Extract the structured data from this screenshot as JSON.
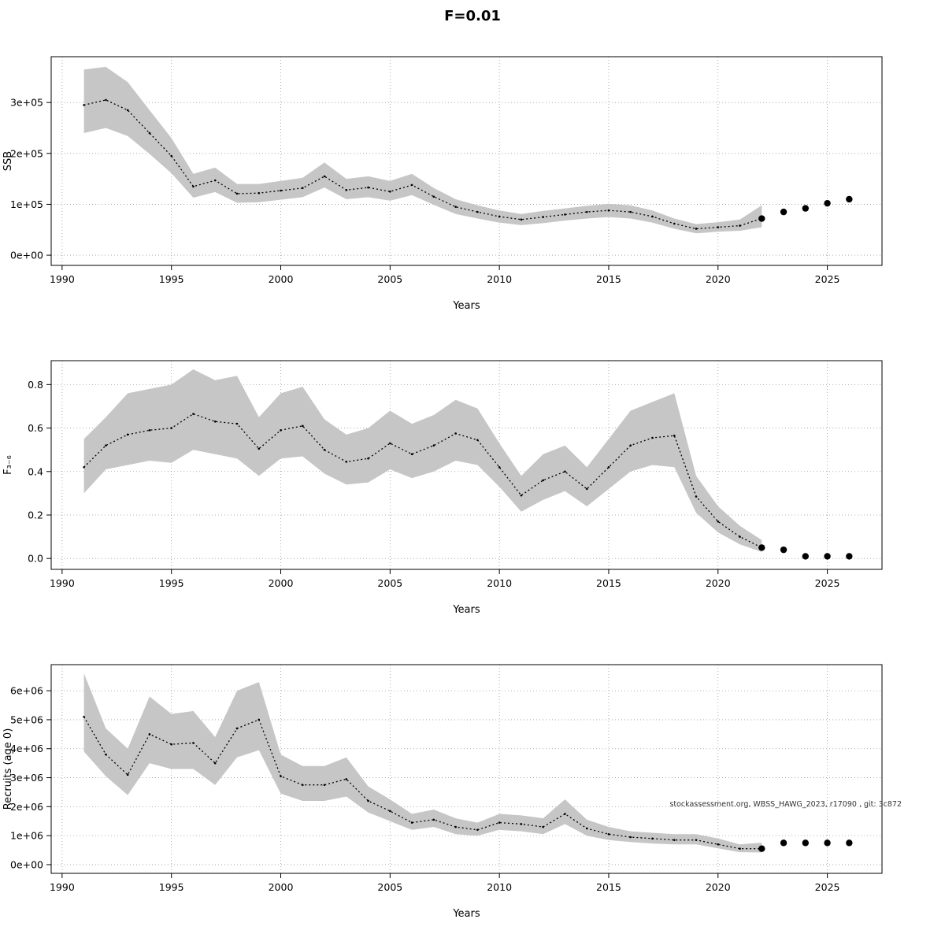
{
  "page": {
    "title": "F=0.01"
  },
  "chart_data": [
    {
      "type": "line",
      "name": "ssb",
      "title": "",
      "xlabel": "Years",
      "ylabel": "SSB",
      "xlim": [
        1989.5,
        2027.5
      ],
      "ylim": [
        -20000,
        390000
      ],
      "xticks": [
        1990,
        1995,
        2000,
        2005,
        2010,
        2015,
        2020,
        2025
      ],
      "xtick_labels": [
        "1990",
        "1995",
        "2000",
        "2005",
        "2010",
        "2015",
        "2020",
        "2025"
      ],
      "yticks": [
        0,
        100000,
        200000,
        300000
      ],
      "ytick_labels": [
        "0e+00",
        "1e+05",
        "2e+05",
        "3e+05"
      ],
      "grid": true,
      "band_color": "#c6c6c6",
      "line_color": "#000000",
      "years": [
        1991,
        1992,
        1993,
        1994,
        1995,
        1996,
        1997,
        1998,
        1999,
        2000,
        2001,
        2002,
        2003,
        2004,
        2005,
        2006,
        2007,
        2008,
        2009,
        2010,
        2011,
        2012,
        2013,
        2014,
        2015,
        2016,
        2017,
        2018,
        2019,
        2020,
        2021,
        2022
      ],
      "mean": [
        295000,
        305000,
        285000,
        240000,
        195000,
        135000,
        147000,
        121000,
        122000,
        127000,
        132000,
        155000,
        128000,
        133000,
        125000,
        138000,
        115000,
        95000,
        85000,
        76000,
        70000,
        75000,
        80000,
        85000,
        88000,
        85000,
        76000,
        62000,
        52000,
        55000,
        58000,
        72000
      ],
      "upper": [
        365000,
        370000,
        340000,
        285000,
        230000,
        160000,
        172000,
        140000,
        140000,
        146000,
        152000,
        182000,
        150000,
        155000,
        146000,
        160000,
        132000,
        110000,
        98000,
        88000,
        81000,
        87000,
        92000,
        97000,
        101000,
        98000,
        88000,
        72000,
        61000,
        65000,
        70000,
        98000
      ],
      "lower": [
        240000,
        250000,
        234000,
        199000,
        161000,
        113000,
        124000,
        103000,
        104000,
        109000,
        114000,
        133000,
        110000,
        114000,
        107000,
        118000,
        99000,
        81000,
        72000,
        64000,
        59000,
        63000,
        68000,
        72000,
        75000,
        72000,
        64000,
        52000,
        43000,
        46000,
        48000,
        55000
      ],
      "forecast_years": [
        2022,
        2023,
        2024,
        2025,
        2026
      ],
      "forecast_values": [
        72000,
        85000,
        92000,
        102000,
        110000
      ],
      "watermark": ""
    },
    {
      "type": "line",
      "name": "fishing-mortality",
      "title": "",
      "xlabel": "Years",
      "ylabel": "F₃₋₆",
      "xlim": [
        1989.5,
        2027.5
      ],
      "ylim": [
        -0.05,
        0.91
      ],
      "xticks": [
        1990,
        1995,
        2000,
        2005,
        2010,
        2015,
        2020,
        2025
      ],
      "xtick_labels": [
        "1990",
        "1995",
        "2000",
        "2005",
        "2010",
        "2015",
        "2020",
        "2025"
      ],
      "yticks": [
        0.0,
        0.2,
        0.4,
        0.6,
        0.8
      ],
      "ytick_labels": [
        "0.0",
        "0.2",
        "0.4",
        "0.6",
        "0.8"
      ],
      "grid": true,
      "band_color": "#c6c6c6",
      "line_color": "#000000",
      "years": [
        1991,
        1992,
        1993,
        1994,
        1995,
        1996,
        1997,
        1998,
        1999,
        2000,
        2001,
        2002,
        2003,
        2004,
        2005,
        2006,
        2007,
        2008,
        2009,
        2010,
        2011,
        2012,
        2013,
        2014,
        2015,
        2016,
        2017,
        2018,
        2019,
        2020,
        2021,
        2022
      ],
      "mean": [
        0.42,
        0.52,
        0.57,
        0.59,
        0.6,
        0.665,
        0.63,
        0.62,
        0.505,
        0.59,
        0.61,
        0.5,
        0.445,
        0.46,
        0.53,
        0.48,
        0.52,
        0.575,
        0.545,
        0.42,
        0.29,
        0.36,
        0.4,
        0.32,
        0.42,
        0.52,
        0.555,
        0.565,
        0.285,
        0.17,
        0.1,
        0.05
      ],
      "upper": [
        0.55,
        0.65,
        0.76,
        0.78,
        0.8,
        0.87,
        0.82,
        0.84,
        0.65,
        0.76,
        0.79,
        0.64,
        0.57,
        0.6,
        0.68,
        0.62,
        0.66,
        0.73,
        0.69,
        0.53,
        0.38,
        0.48,
        0.52,
        0.42,
        0.55,
        0.68,
        0.72,
        0.76,
        0.38,
        0.24,
        0.15,
        0.085
      ],
      "lower": [
        0.3,
        0.41,
        0.43,
        0.45,
        0.44,
        0.5,
        0.48,
        0.46,
        0.38,
        0.46,
        0.47,
        0.39,
        0.34,
        0.35,
        0.41,
        0.37,
        0.4,
        0.45,
        0.43,
        0.33,
        0.215,
        0.27,
        0.31,
        0.24,
        0.32,
        0.4,
        0.43,
        0.42,
        0.21,
        0.12,
        0.065,
        0.03
      ],
      "forecast_years": [
        2022,
        2023,
        2024,
        2025,
        2026
      ],
      "forecast_values": [
        0.05,
        0.04,
        0.01,
        0.01,
        0.01
      ],
      "watermark": ""
    },
    {
      "type": "line",
      "name": "recruits",
      "title": "",
      "xlabel": "Years",
      "ylabel": "Recruits (age 0)",
      "xlim": [
        1989.5,
        2027.5
      ],
      "ylim": [
        -300000,
        6900000
      ],
      "xticks": [
        1990,
        1995,
        2000,
        2005,
        2010,
        2015,
        2020,
        2025
      ],
      "xtick_labels": [
        "1990",
        "1995",
        "2000",
        "2005",
        "2010",
        "2015",
        "2020",
        "2025"
      ],
      "yticks": [
        0,
        1000000,
        2000000,
        3000000,
        4000000,
        5000000,
        6000000
      ],
      "ytick_labels": [
        "0e+00",
        "1e+06",
        "2e+06",
        "3e+06",
        "4e+06",
        "5e+06",
        "6e+06"
      ],
      "grid": true,
      "band_color": "#c6c6c6",
      "line_color": "#000000",
      "years": [
        1991,
        1992,
        1993,
        1994,
        1995,
        1996,
        1997,
        1998,
        1999,
        2000,
        2001,
        2002,
        2003,
        2004,
        2005,
        2006,
        2007,
        2008,
        2009,
        2010,
        2011,
        2012,
        2013,
        2014,
        2015,
        2016,
        2017,
        2018,
        2019,
        2020,
        2021,
        2022
      ],
      "mean": [
        5100000,
        3800000,
        3100000,
        4500000,
        4150000,
        4200000,
        3500000,
        4700000,
        5000000,
        3050000,
        2750000,
        2750000,
        2950000,
        2200000,
        1850000,
        1450000,
        1550000,
        1300000,
        1200000,
        1450000,
        1400000,
        1300000,
        1750000,
        1250000,
        1050000,
        950000,
        900000,
        850000,
        850000,
        700000,
        550000,
        550000
      ],
      "upper": [
        6600000,
        4700000,
        4000000,
        5800000,
        5200000,
        5300000,
        4400000,
        6000000,
        6300000,
        3800000,
        3400000,
        3400000,
        3700000,
        2700000,
        2250000,
        1750000,
        1900000,
        1600000,
        1450000,
        1750000,
        1700000,
        1600000,
        2250000,
        1550000,
        1300000,
        1150000,
        1100000,
        1050000,
        1050000,
        900000,
        700000,
        760000
      ],
      "lower": [
        3900000,
        3050000,
        2400000,
        3500000,
        3300000,
        3300000,
        2750000,
        3700000,
        3950000,
        2450000,
        2200000,
        2200000,
        2350000,
        1800000,
        1500000,
        1200000,
        1300000,
        1050000,
        1000000,
        1200000,
        1150000,
        1050000,
        1400000,
        1000000,
        850000,
        780000,
        730000,
        700000,
        700000,
        560000,
        430000,
        420000
      ],
      "forecast_years": [
        2022,
        2023,
        2024,
        2025,
        2026
      ],
      "forecast_values": [
        550000,
        750000,
        750000,
        750000,
        750000
      ],
      "watermark": "stockassessment.org, WBSS_HAWG_2023, r17090 , git: 3c872"
    }
  ]
}
